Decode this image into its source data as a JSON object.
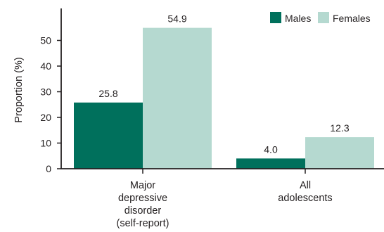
{
  "chart_data": {
    "type": "bar",
    "title": "",
    "xlabel": "",
    "ylabel": "Proportion (%)",
    "ylim": [
      0,
      60
    ],
    "yticks": [
      0,
      10,
      20,
      30,
      40,
      50
    ],
    "categories": [
      [
        "Major",
        "depressive",
        "disorder",
        "(self-report)"
      ],
      [
        "All",
        "adolescents"
      ]
    ],
    "series": [
      {
        "name": "Males",
        "color": "#00705c",
        "values": [
          25.8,
          4.0
        ],
        "labels": [
          "25.8",
          "4.0"
        ]
      },
      {
        "name": "Females",
        "color": "#b5d9d0",
        "values": [
          54.9,
          12.3
        ],
        "labels": [
          "54.9",
          "12.3"
        ]
      }
    ],
    "legend_position": "top-right",
    "grid": false
  }
}
